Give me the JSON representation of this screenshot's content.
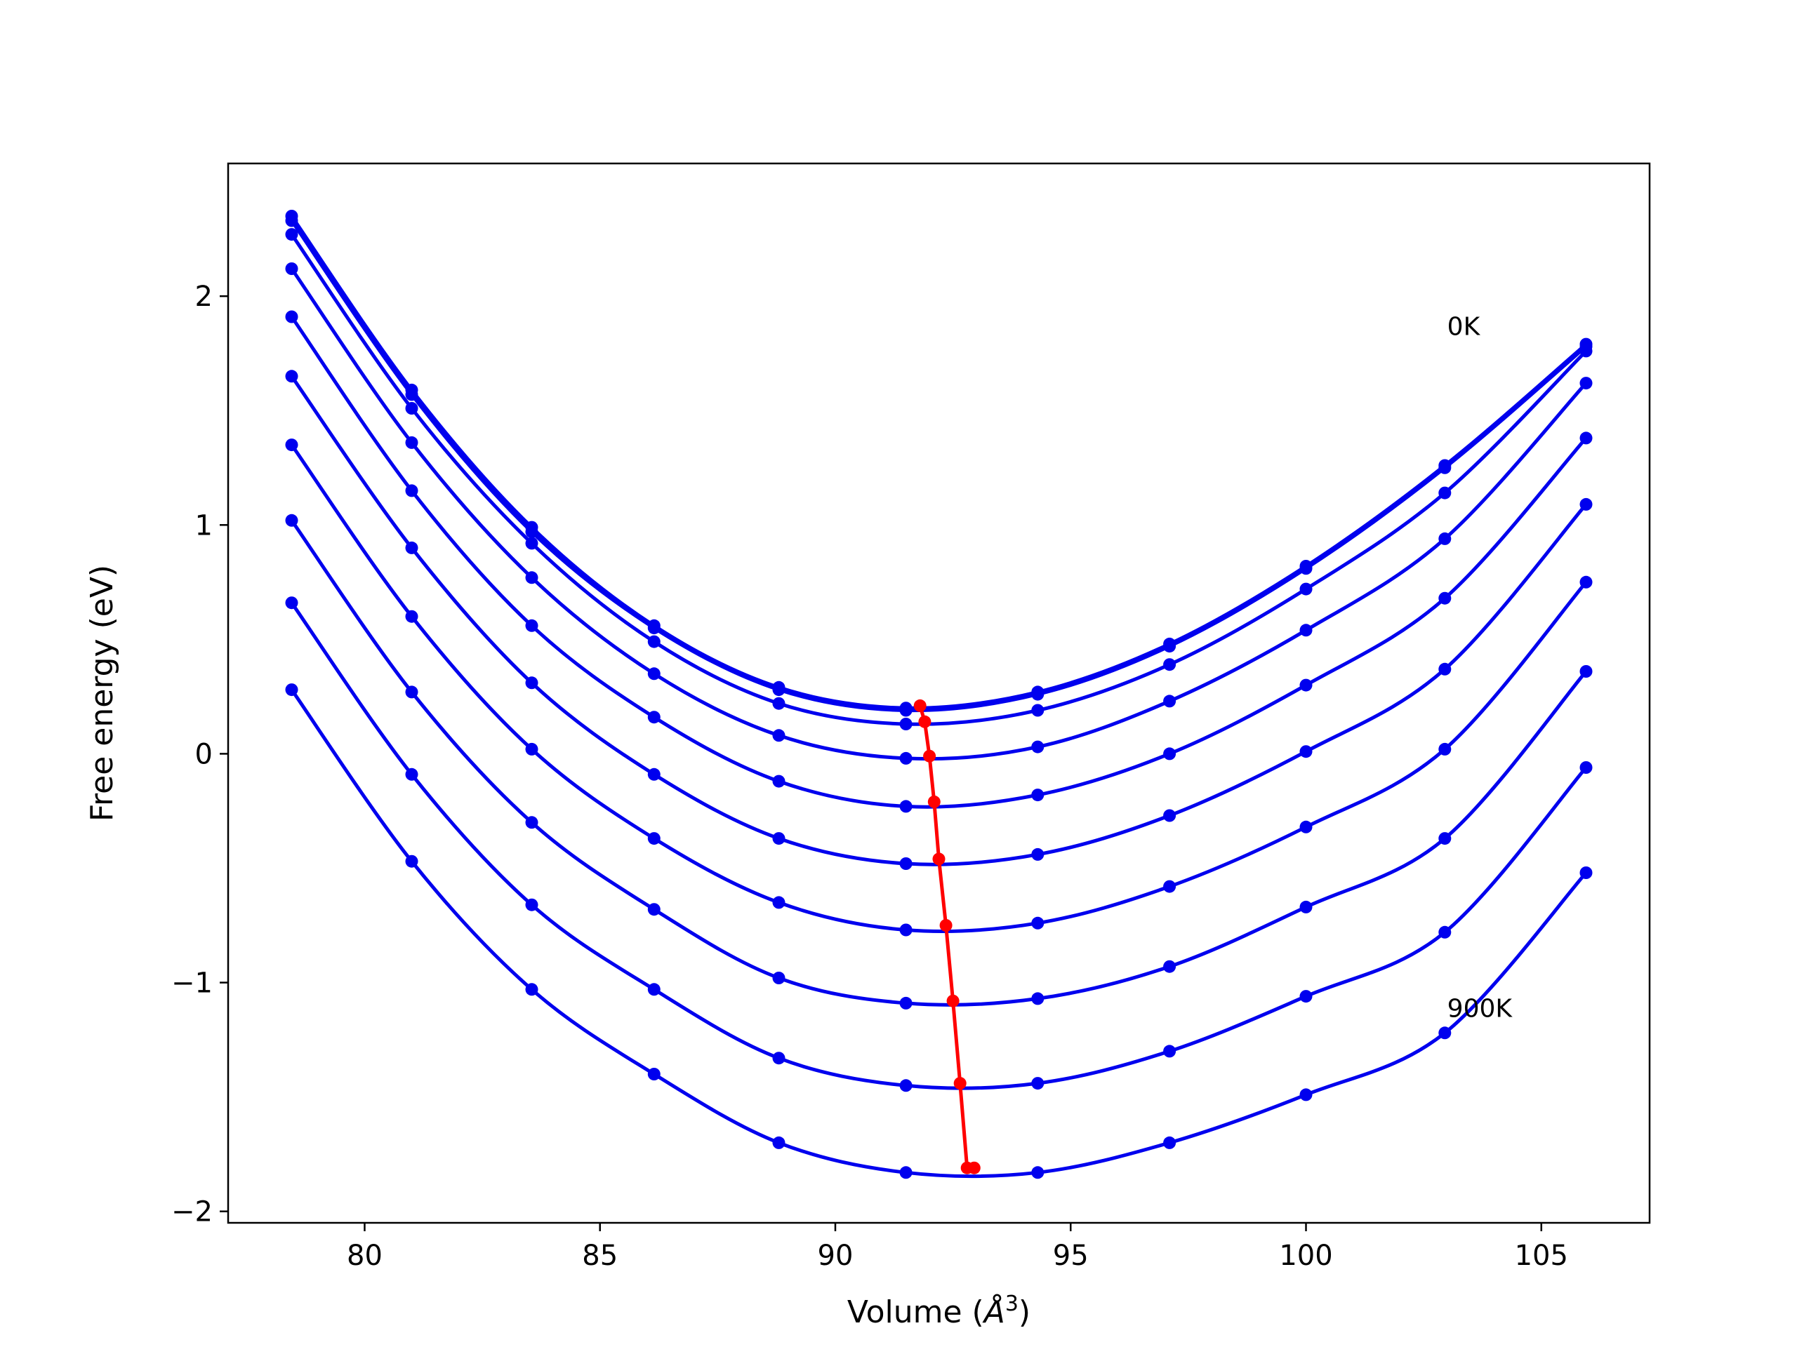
{
  "chart_data": {
    "type": "line",
    "xlabel": "Volume (Å³)",
    "xlabel_base": "Volume (",
    "xlabel_unit": "Å",
    "xlabel_exp": "3",
    "xlabel_close": ")",
    "ylabel": "Free energy (eV)",
    "xlim": [
      77.1,
      107.3
    ],
    "ylim": [
      -2.05,
      2.58
    ],
    "xticks": [
      80,
      85,
      90,
      95,
      100,
      105
    ],
    "yticks": [
      -2,
      -1,
      0,
      1,
      2
    ],
    "xtick_labels": [
      "80",
      "85",
      "90",
      "95",
      "100",
      "105"
    ],
    "ytick_labels": [
      "−2",
      "−1",
      "0",
      "1",
      "2"
    ],
    "grid": false,
    "annotations": [
      {
        "text": "0K",
        "x": 103.0,
        "y": 1.83
      },
      {
        "text": "900K",
        "x": 103.0,
        "y": -1.15
      }
    ],
    "colors": {
      "curves": "#0000ee",
      "minimum_line": "#ff0000"
    },
    "x": [
      78.45,
      81.0,
      83.55,
      86.15,
      88.8,
      91.5,
      94.3,
      97.1,
      100.0,
      102.95,
      105.95
    ],
    "series": [
      {
        "values": [
          2.35,
          1.59,
          0.99,
          0.56,
          0.29,
          0.2,
          0.27,
          0.48,
          0.82,
          1.26,
          1.79
        ]
      },
      {
        "values": [
          2.33,
          1.57,
          0.97,
          0.55,
          0.28,
          0.19,
          0.26,
          0.47,
          0.81,
          1.25,
          1.78
        ]
      },
      {
        "values": [
          2.27,
          1.51,
          0.92,
          0.49,
          0.22,
          0.13,
          0.19,
          0.39,
          0.72,
          1.14,
          1.76
        ]
      },
      {
        "values": [
          2.12,
          1.36,
          0.77,
          0.35,
          0.08,
          -0.02,
          0.03,
          0.23,
          0.54,
          0.94,
          1.62
        ]
      },
      {
        "values": [
          1.91,
          1.15,
          0.56,
          0.16,
          -0.12,
          -0.23,
          -0.18,
          0.0,
          0.3,
          0.68,
          1.38
        ]
      },
      {
        "values": [
          1.65,
          0.9,
          0.31,
          -0.09,
          -0.37,
          -0.48,
          -0.44,
          -0.27,
          0.01,
          0.37,
          1.09
        ]
      },
      {
        "values": [
          1.35,
          0.6,
          0.02,
          -0.37,
          -0.65,
          -0.77,
          -0.74,
          -0.58,
          -0.32,
          0.02,
          0.75
        ]
      },
      {
        "values": [
          1.02,
          0.27,
          -0.3,
          -0.68,
          -0.98,
          -1.09,
          -1.07,
          -0.93,
          -0.67,
          -0.37,
          0.36
        ]
      },
      {
        "values": [
          0.66,
          -0.09,
          -0.66,
          -1.03,
          -1.33,
          -1.45,
          -1.44,
          -1.3,
          -1.06,
          -0.78,
          -0.06
        ]
      },
      {
        "values": [
          0.28,
          -0.47,
          -1.03,
          -1.4,
          -1.7,
          -1.83,
          -1.83,
          -1.7,
          -1.49,
          -1.22,
          -0.52
        ]
      }
    ],
    "minimum_line": {
      "x": [
        91.8,
        91.9,
        92.0,
        92.1,
        92.2,
        92.35,
        92.5,
        92.65,
        92.8,
        92.95
      ],
      "y": [
        0.21,
        0.14,
        -0.01,
        -0.21,
        -0.46,
        -0.75,
        -1.08,
        -1.44,
        -1.81,
        -1.81
      ]
    }
  }
}
